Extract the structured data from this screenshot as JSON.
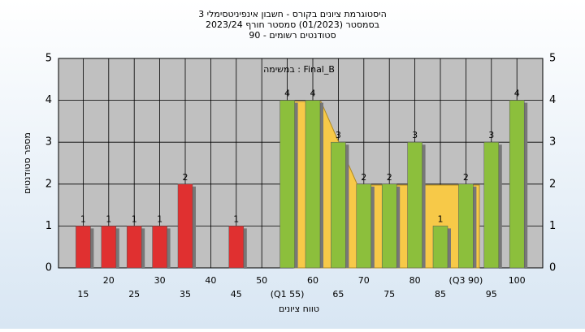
{
  "chart_data": {
    "type": "bar",
    "title": "היסטוגרמת ציונים בקורס - חשבון אינפיניטסימלי 3",
    "subtitle": "בסמסטר  (01/2023)  סמסטר חורף  2023/24",
    "subtitle2": "סטודנטים רשומים - 90",
    "annotation": "במשימה : Final_B",
    "y_label": "מספר סטודנטים",
    "x_label": "טווח ציונים",
    "categories": [
      "15",
      "20",
      "25",
      "30",
      "35",
      "40",
      "45",
      "50",
      "(Q1 55)",
      "60",
      "65",
      "70",
      "75",
      "80",
      "85",
      "(Q3 90)",
      "95",
      "100"
    ],
    "values": [
      1,
      1,
      1,
      1,
      2,
      0,
      1,
      0,
      4,
      4,
      3,
      2,
      2,
      3,
      1,
      2,
      3,
      4
    ],
    "colors": [
      "#e03030",
      "#e03030",
      "#e03030",
      "#e03030",
      "#e03030",
      "#e03030",
      "#e03030",
      "#e03030",
      "#8cbf3c",
      "#8cbf3c",
      "#8cbf3c",
      "#8cbf3c",
      "#8cbf3c",
      "#8cbf3c",
      "#8cbf3c",
      "#8cbf3c",
      "#8cbf3c",
      "#8cbf3c"
    ],
    "ylim": [
      0,
      5
    ],
    "yticks": [
      0,
      1,
      2,
      3,
      4,
      5
    ],
    "grid": true
  }
}
